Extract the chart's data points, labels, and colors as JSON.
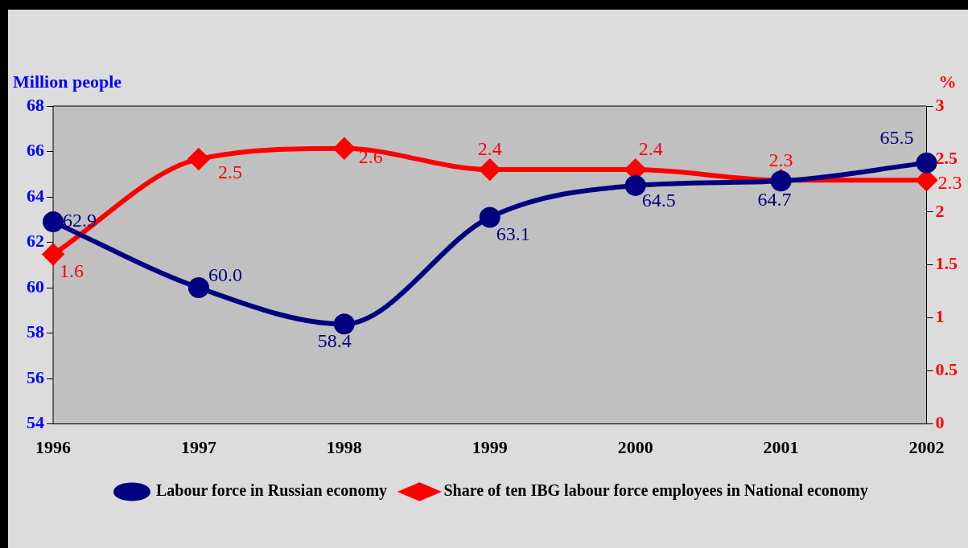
{
  "chart_data": {
    "type": "line",
    "ylabel": "Million people",
    "y2label": "%",
    "categories": [
      "1996",
      "1997",
      "1998",
      "1999",
      "2000",
      "2001",
      "2002"
    ],
    "series": [
      {
        "name": "Labour force in Russian economy",
        "color": "#000080",
        "marker": "circle",
        "values": [
          62.9,
          60.0,
          58.4,
          63.1,
          64.5,
          64.7,
          65.5
        ],
        "value_labels": [
          "62.9",
          "60.0",
          "58.4",
          "63.1",
          "64.5",
          "64.7",
          "65.5"
        ]
      },
      {
        "name": "Share of ten IBG labour force employees in National economy",
        "color": "#ff0000",
        "marker": "diamond",
        "axis": "y2",
        "values": [
          1.6,
          2.5,
          2.6,
          2.4,
          2.4,
          2.3,
          2.3
        ],
        "value_labels": [
          "1.6",
          "2.5",
          "2.6",
          "2.4",
          "2.4",
          "2.3",
          "2.3"
        ]
      }
    ],
    "ylim": [
      54,
      68
    ],
    "yticks": [
      54,
      56,
      58,
      60,
      62,
      64,
      66,
      68
    ],
    "y2lim": [
      0,
      3
    ],
    "y2ticks": [
      0,
      0.5,
      1,
      1.5,
      2,
      2.5,
      3
    ],
    "grid": false,
    "legend": "bottom"
  }
}
